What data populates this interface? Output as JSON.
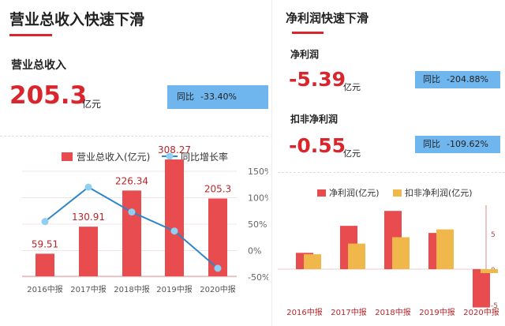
{
  "left": {
    "title": "营业总收入快速下滑",
    "metric_label": "营业总收入",
    "value": "205.3",
    "unit": "亿元",
    "yoy_label": "同比",
    "yoy_value": "-33.40%"
  },
  "right": {
    "title": "净利润快速下滑",
    "net_profit": {
      "label": "净利润",
      "value": "-5.39",
      "unit": "亿元",
      "yoy_label": "同比",
      "yoy_value": "-204.88%"
    },
    "deducted_profit": {
      "label": "扣非净利润",
      "value": "-0.55",
      "unit": "亿元",
      "yoy_label": "同比",
      "yoy_value": "-109.62%"
    }
  },
  "colors": {
    "accent_red": "#d9262c",
    "bar_red": "#e84c4f",
    "bar_gold": "#f0b84a",
    "line_blue": "#2f86c8",
    "dot_blue": "#8fcff1",
    "yoy_box": "#6fb6ef"
  },
  "chart_data": [
    {
      "type": "bar",
      "categories": [
        "2016中报",
        "2017中报",
        "2018中报",
        "2019中报",
        "2020中报"
      ],
      "series": [
        {
          "name": "营业总收入(亿元)",
          "kind": "bar",
          "values": [
            59.51,
            130.91,
            226.34,
            308.27,
            205.3
          ],
          "labels": [
            "59.51",
            "130.91",
            "226.34",
            "308.27",
            "205.3"
          ]
        },
        {
          "name": "同比增长率",
          "kind": "line",
          "values": [
            55,
            120,
            73,
            37,
            -33.4
          ]
        }
      ],
      "y2_ticks": [
        "150%",
        "100%",
        "50%",
        "0%",
        "-50%"
      ],
      "y2lim": [
        -50,
        150
      ],
      "ylim": [
        0,
        400
      ],
      "legend_position": "top"
    },
    {
      "type": "bar",
      "categories": [
        "2016中报",
        "2017中报",
        "2018中报",
        "2019中报",
        "2020中报"
      ],
      "series": [
        {
          "name": "净利润(亿元)",
          "values": [
            2.3,
            6.1,
            8.2,
            5.1,
            -5.39
          ]
        },
        {
          "name": "扣非净利润(亿元)",
          "values": [
            2.1,
            3.6,
            4.5,
            5.6,
            -0.55
          ]
        }
      ],
      "y_ticks": [
        "5",
        "0",
        "-5"
      ],
      "ylim": [
        -5,
        10
      ],
      "legend_position": "top"
    }
  ]
}
